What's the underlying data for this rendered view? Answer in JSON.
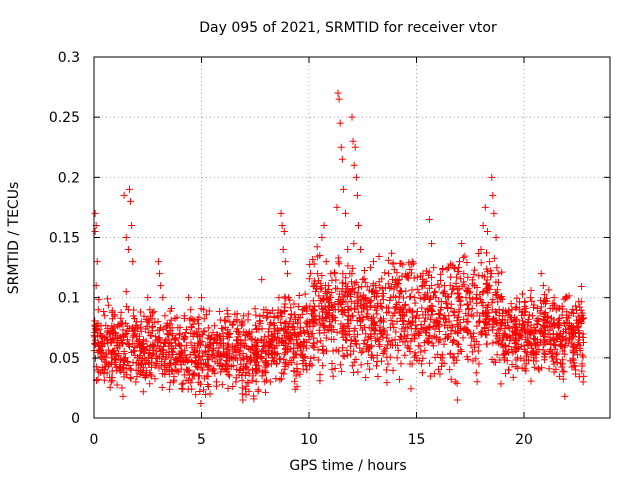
{
  "chart_data": {
    "type": "scatter",
    "title": "Day 095 of 2021, SRMTID for receiver vtor",
    "xlabel": "GPS time / hours",
    "ylabel": "SRMTID / TECUs",
    "xlim": [
      0,
      24
    ],
    "ylim": [
      0,
      0.3
    ],
    "xticks": [
      0,
      5,
      10,
      15,
      20
    ],
    "yticks": [
      0,
      0.05,
      0.1,
      0.15,
      0.2,
      0.25,
      0.3
    ],
    "xtick_labels": [
      "0",
      "5",
      "10",
      "15",
      "20"
    ],
    "ytick_labels": [
      "0",
      "0.05",
      "0.1",
      "0.15",
      "0.2",
      "0.25",
      "0.3"
    ],
    "grid": true,
    "marker": "+",
    "color": "#ff0000",
    "series": [
      {
        "name": "SRMTID",
        "points": [
          [
            0.05,
            0.17
          ],
          [
            0.05,
            0.155
          ],
          [
            0.1,
            0.16
          ],
          [
            0.15,
            0.13
          ],
          [
            0.1,
            0.11
          ],
          [
            0.2,
            0.09
          ],
          [
            0.25,
            0.06
          ],
          [
            0.3,
            0.07
          ],
          [
            0.35,
            0.05
          ],
          [
            0.4,
            0.04
          ],
          [
            0.5,
            0.085
          ],
          [
            0.6,
            0.065
          ],
          [
            0.7,
            0.045
          ],
          [
            0.8,
            0.03
          ],
          [
            0.9,
            0.055
          ],
          [
            1.0,
            0.07
          ],
          [
            1.1,
            0.06
          ],
          [
            1.2,
            0.04
          ],
          [
            1.3,
            0.025
          ],
          [
            1.35,
            0.018
          ],
          [
            1.4,
            0.185
          ],
          [
            1.5,
            0.15
          ],
          [
            1.6,
            0.14
          ],
          [
            1.65,
            0.19
          ],
          [
            1.7,
            0.18
          ],
          [
            1.75,
            0.16
          ],
          [
            1.8,
            0.13
          ],
          [
            1.5,
            0.105
          ],
          [
            1.6,
            0.09
          ],
          [
            1.9,
            0.07
          ],
          [
            2.0,
            0.06
          ],
          [
            2.1,
            0.05
          ],
          [
            2.2,
            0.08
          ],
          [
            2.3,
            0.065
          ],
          [
            2.4,
            0.035
          ],
          [
            2.5,
            0.1
          ],
          [
            2.6,
            0.09
          ],
          [
            2.7,
            0.075
          ],
          [
            2.8,
            0.06
          ],
          [
            2.9,
            0.045
          ],
          [
            3.0,
            0.13
          ],
          [
            3.05,
            0.12
          ],
          [
            3.1,
            0.11
          ],
          [
            3.2,
            0.1
          ],
          [
            3.3,
            0.085
          ],
          [
            3.4,
            0.07
          ],
          [
            3.5,
            0.055
          ],
          [
            3.6,
            0.04
          ],
          [
            3.7,
            0.03
          ],
          [
            3.8,
            0.065
          ],
          [
            3.9,
            0.075
          ],
          [
            4.0,
            0.06
          ],
          [
            4.1,
            0.05
          ],
          [
            4.2,
            0.085
          ],
          [
            4.3,
            0.04
          ],
          [
            4.4,
            0.1
          ],
          [
            4.5,
            0.09
          ],
          [
            4.6,
            0.07
          ],
          [
            4.7,
            0.055
          ],
          [
            4.8,
            0.045
          ],
          [
            4.9,
            0.035
          ],
          [
            5.0,
            0.1
          ],
          [
            5.1,
            0.09
          ],
          [
            5.2,
            0.06
          ],
          [
            5.3,
            0.04
          ],
          [
            5.4,
            0.02
          ],
          [
            5.5,
            0.05
          ],
          [
            5.6,
            0.065
          ],
          [
            5.7,
            0.03
          ],
          [
            5.8,
            0.055
          ],
          [
            5.9,
            0.045
          ],
          [
            6.0,
            0.07
          ],
          [
            6.1,
            0.04
          ],
          [
            6.2,
            0.06
          ],
          [
            6.3,
            0.035
          ],
          [
            6.4,
            0.05
          ],
          [
            6.5,
            0.08
          ],
          [
            6.6,
            0.03
          ],
          [
            6.7,
            0.055
          ],
          [
            6.8,
            0.065
          ],
          [
            6.9,
            0.02
          ],
          [
            7.0,
            0.06
          ],
          [
            7.1,
            0.045
          ],
          [
            7.2,
            0.07
          ],
          [
            7.3,
            0.05
          ],
          [
            7.4,
            0.035
          ],
          [
            7.5,
            0.065
          ],
          [
            7.6,
            0.055
          ],
          [
            7.7,
            0.08
          ],
          [
            7.8,
            0.115
          ],
          [
            7.9,
            0.09
          ],
          [
            8.0,
            0.06
          ],
          [
            8.1,
            0.045
          ],
          [
            8.2,
            0.03
          ],
          [
            8.3,
            0.05
          ],
          [
            8.4,
            0.07
          ],
          [
            8.5,
            0.06
          ],
          [
            8.6,
            0.1
          ],
          [
            8.7,
            0.17
          ],
          [
            8.75,
            0.16
          ],
          [
            8.8,
            0.14
          ],
          [
            8.85,
            0.155
          ],
          [
            8.9,
            0.13
          ],
          [
            9.0,
            0.12
          ],
          [
            9.05,
            0.1
          ],
          [
            9.1,
            0.08
          ],
          [
            9.2,
            0.065
          ],
          [
            9.3,
            0.05
          ],
          [
            9.4,
            0.035
          ],
          [
            9.5,
            0.06
          ],
          [
            9.6,
            0.075
          ],
          [
            9.7,
            0.09
          ],
          [
            9.8,
            0.05
          ],
          [
            9.9,
            0.04
          ],
          [
            10.0,
            0.065
          ],
          [
            10.1,
            0.07
          ],
          [
            10.2,
            0.09
          ],
          [
            10.3,
            0.105
          ],
          [
            10.4,
            0.12
          ],
          [
            10.5,
            0.135
          ],
          [
            10.6,
            0.15
          ],
          [
            10.7,
            0.16
          ],
          [
            10.8,
            0.13
          ],
          [
            10.9,
            0.11
          ],
          [
            11.0,
            0.1
          ],
          [
            11.1,
            0.085
          ],
          [
            11.2,
            0.12
          ],
          [
            11.3,
            0.175
          ],
          [
            11.35,
            0.27
          ],
          [
            11.4,
            0.265
          ],
          [
            11.45,
            0.245
          ],
          [
            11.5,
            0.225
          ],
          [
            11.55,
            0.215
          ],
          [
            11.6,
            0.19
          ],
          [
            11.7,
            0.17
          ],
          [
            11.8,
            0.14
          ],
          [
            11.9,
            0.12
          ],
          [
            12.0,
            0.25
          ],
          [
            12.05,
            0.23
          ],
          [
            12.1,
            0.21
          ],
          [
            12.15,
            0.225
          ],
          [
            12.2,
            0.2
          ],
          [
            12.25,
            0.185
          ],
          [
            12.3,
            0.16
          ],
          [
            12.4,
            0.14
          ],
          [
            12.5,
            0.115
          ],
          [
            12.6,
            0.1
          ],
          [
            12.7,
            0.09
          ],
          [
            12.8,
            0.075
          ],
          [
            12.9,
            0.06
          ],
          [
            13.0,
            0.13
          ],
          [
            13.1,
            0.11
          ],
          [
            13.2,
            0.095
          ],
          [
            13.3,
            0.08
          ],
          [
            13.4,
            0.07
          ],
          [
            13.5,
            0.055
          ],
          [
            13.6,
            0.04
          ],
          [
            13.7,
            0.12
          ],
          [
            13.8,
            0.1
          ],
          [
            13.9,
            0.085
          ],
          [
            14.0,
            0.065
          ],
          [
            14.1,
            0.05
          ],
          [
            14.2,
            0.115
          ],
          [
            14.3,
            0.105
          ],
          [
            14.4,
            0.09
          ],
          [
            14.5,
            0.075
          ],
          [
            14.6,
            0.06
          ],
          [
            14.7,
            0.045
          ],
          [
            14.8,
            0.13
          ],
          [
            14.9,
            0.1
          ],
          [
            15.0,
            0.085
          ],
          [
            15.1,
            0.07
          ],
          [
            15.2,
            0.055
          ],
          [
            15.3,
            0.12
          ],
          [
            15.4,
            0.11
          ],
          [
            15.5,
            0.09
          ],
          [
            15.6,
            0.165
          ],
          [
            15.7,
            0.145
          ],
          [
            15.8,
            0.125
          ],
          [
            15.9,
            0.1
          ],
          [
            16.0,
            0.08
          ],
          [
            16.1,
            0.065
          ],
          [
            16.2,
            0.05
          ],
          [
            16.3,
            0.11
          ],
          [
            16.4,
            0.095
          ],
          [
            16.5,
            0.085
          ],
          [
            16.6,
            0.07
          ],
          [
            16.7,
            0.05
          ],
          [
            16.8,
            0.03
          ],
          [
            16.9,
            0.015
          ],
          [
            17.0,
            0.13
          ],
          [
            17.1,
            0.145
          ],
          [
            17.2,
            0.12
          ],
          [
            17.3,
            0.1
          ],
          [
            17.4,
            0.085
          ],
          [
            17.5,
            0.07
          ],
          [
            17.6,
            0.055
          ],
          [
            17.7,
            0.11
          ],
          [
            17.8,
            0.095
          ],
          [
            17.9,
            0.08
          ],
          [
            18.0,
            0.14
          ],
          [
            18.1,
            0.16
          ],
          [
            18.2,
            0.175
          ],
          [
            18.3,
            0.155
          ],
          [
            18.4,
            0.13
          ],
          [
            18.5,
            0.2
          ],
          [
            18.55,
            0.185
          ],
          [
            18.6,
            0.17
          ],
          [
            18.7,
            0.15
          ],
          [
            18.8,
            0.12
          ],
          [
            18.9,
            0.1
          ],
          [
            19.0,
            0.085
          ],
          [
            19.1,
            0.07
          ],
          [
            19.2,
            0.055
          ],
          [
            19.3,
            0.04
          ],
          [
            19.4,
            0.095
          ],
          [
            19.5,
            0.08
          ],
          [
            19.6,
            0.065
          ],
          [
            19.7,
            0.05
          ],
          [
            19.8,
            0.09
          ],
          [
            19.9,
            0.075
          ],
          [
            20.0,
            0.06
          ],
          [
            20.1,
            0.045
          ],
          [
            20.2,
            0.08
          ],
          [
            20.3,
            0.1
          ],
          [
            20.4,
            0.085
          ],
          [
            20.5,
            0.07
          ],
          [
            20.6,
            0.055
          ],
          [
            20.7,
            0.04
          ],
          [
            20.8,
            0.12
          ],
          [
            20.9,
            0.11
          ],
          [
            21.0,
            0.095
          ],
          [
            21.1,
            0.08
          ],
          [
            21.2,
            0.065
          ],
          [
            21.3,
            0.05
          ],
          [
            21.4,
            0.1
          ],
          [
            21.5,
            0.09
          ],
          [
            21.6,
            0.075
          ],
          [
            21.7,
            0.06
          ],
          [
            21.8,
            0.045
          ],
          [
            21.9,
            0.018
          ],
          [
            22.0,
            0.1
          ],
          [
            22.1,
            0.085
          ],
          [
            22.2,
            0.07
          ],
          [
            22.3,
            0.055
          ],
          [
            22.4,
            0.04
          ],
          [
            22.5,
            0.075
          ],
          [
            22.6,
            0.06
          ],
          [
            22.7,
            0.045
          ],
          [
            22.75,
            0.03
          ]
        ]
      }
    ],
    "background_band": {
      "note": "dense cloud rendered procedurally around base level",
      "seed": 95
    }
  }
}
